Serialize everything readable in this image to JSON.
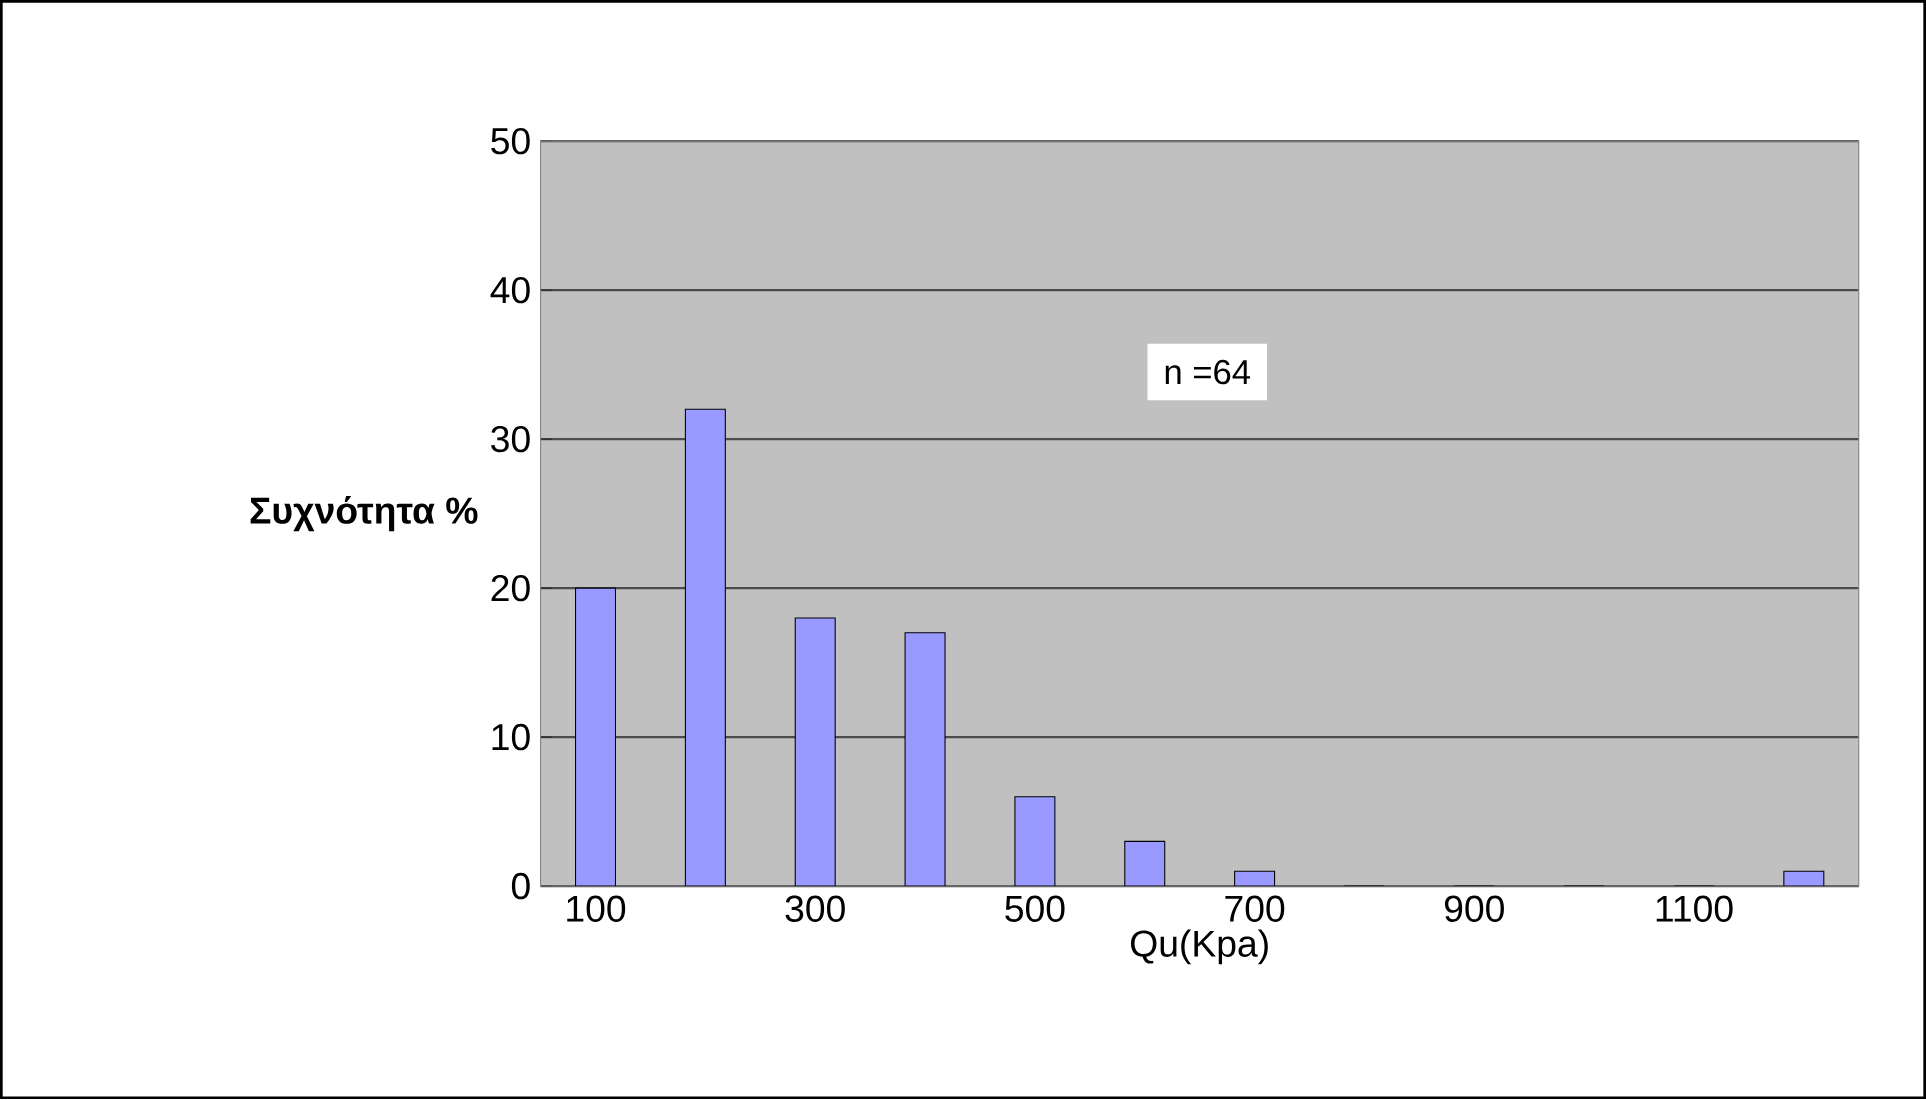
{
  "chart_data": {
    "type": "bar",
    "xlabel": "Qu(Kpa)",
    "ylabel": "**Συχνότητα %**",
    "categories": [
      "100",
      null,
      "300",
      null,
      "500",
      null,
      "700",
      null,
      "900",
      null,
      "1100",
      null
    ],
    "values": [
      20,
      32,
      18,
      17,
      6,
      3,
      1,
      0,
      0,
      0,
      0,
      1
    ],
    "color": "#9999ff",
    "ylim": [
      0,
      50
    ],
    "yticks": [
      0,
      10,
      20,
      30,
      40,
      50
    ],
    "grid": "y",
    "annotations": [
      "n =64"
    ]
  }
}
